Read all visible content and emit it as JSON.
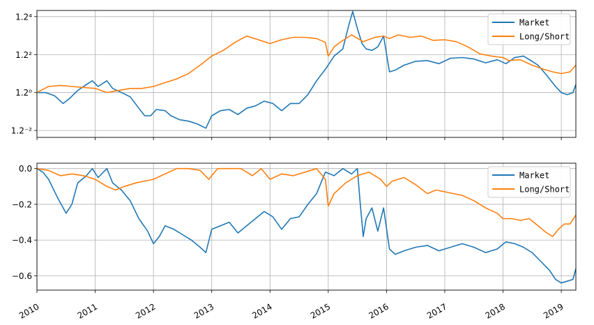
{
  "chart_data": [
    {
      "type": "line",
      "scale": "log",
      "log_base": 1.2,
      "ylim": [
        0.65,
        2.2
      ],
      "y_tick_labels": [
        {
          "value": 2.0736,
          "label": "1.2⁴"
        },
        {
          "value": 1.44,
          "label": "1.2²"
        },
        {
          "value": 1.0,
          "label": "1.2⁰"
        },
        {
          "value": 0.6944,
          "label": "1.2⁻²"
        }
      ],
      "x_tick_labels": [
        "2010",
        "2011",
        "2012",
        "2013",
        "2014",
        "2015",
        "2016",
        "2017",
        "2018",
        "2019"
      ],
      "x_range": [
        2010.0,
        2019.25
      ],
      "grid": true,
      "legend_position": "top-right",
      "series": [
        {
          "name": "Market",
          "color": "#1f77b4",
          "x": [
            2010.0,
            2010.15,
            2010.3,
            2010.45,
            2010.55,
            2010.7,
            2010.85,
            2010.95,
            2011.05,
            2011.2,
            2011.3,
            2011.45,
            2011.6,
            2011.75,
            2011.85,
            2011.95,
            2012.05,
            2012.2,
            2012.3,
            2012.45,
            2012.6,
            2012.75,
            2012.9,
            2013.0,
            2013.15,
            2013.3,
            2013.45,
            2013.6,
            2013.75,
            2013.9,
            2014.05,
            2014.2,
            2014.35,
            2014.5,
            2014.65,
            2014.8,
            2014.95,
            2015.1,
            2015.25,
            2015.35,
            2015.42,
            2015.5,
            2015.58,
            2015.65,
            2015.75,
            2015.85,
            2015.95,
            2016.05,
            2016.15,
            2016.3,
            2016.5,
            2016.7,
            2016.9,
            2017.1,
            2017.3,
            2017.5,
            2017.7,
            2017.9,
            2018.05,
            2018.2,
            2018.35,
            2018.5,
            2018.6,
            2018.75,
            2018.9,
            2019.0,
            2019.1,
            2019.2,
            2019.25
          ],
          "values": [
            1.0,
            1.0,
            0.97,
            0.9,
            0.94,
            1.02,
            1.08,
            1.12,
            1.06,
            1.12,
            1.04,
            1.0,
            0.96,
            0.86,
            0.8,
            0.8,
            0.85,
            0.84,
            0.8,
            0.77,
            0.76,
            0.74,
            0.71,
            0.8,
            0.84,
            0.85,
            0.81,
            0.86,
            0.88,
            0.92,
            0.9,
            0.84,
            0.9,
            0.9,
            0.98,
            1.12,
            1.25,
            1.42,
            1.52,
            1.9,
            2.18,
            1.85,
            1.6,
            1.52,
            1.5,
            1.55,
            1.72,
            1.22,
            1.24,
            1.3,
            1.35,
            1.36,
            1.32,
            1.39,
            1.4,
            1.38,
            1.33,
            1.37,
            1.32,
            1.4,
            1.42,
            1.35,
            1.3,
            1.18,
            1.06,
            1.0,
            0.98,
            1.0,
            1.08
          ]
        },
        {
          "name": "Long/Short",
          "color": "#ff7f0e",
          "x": [
            2010.0,
            2010.2,
            2010.4,
            2010.6,
            2010.8,
            2011.0,
            2011.2,
            2011.4,
            2011.6,
            2011.8,
            2012.0,
            2012.2,
            2012.4,
            2012.6,
            2012.8,
            2013.0,
            2013.2,
            2013.4,
            2013.6,
            2013.8,
            2014.0,
            2014.2,
            2014.4,
            2014.6,
            2014.8,
            2014.95,
            2015.0,
            2015.1,
            2015.2,
            2015.4,
            2015.6,
            2015.8,
            2015.95,
            2016.05,
            2016.2,
            2016.4,
            2016.6,
            2016.8,
            2017.0,
            2017.2,
            2017.4,
            2017.6,
            2017.8,
            2018.0,
            2018.1,
            2018.3,
            2018.5,
            2018.7,
            2018.85,
            2019.0,
            2019.15,
            2019.25
          ],
          "values": [
            1.0,
            1.06,
            1.07,
            1.06,
            1.05,
            1.04,
            1.0,
            1.02,
            1.04,
            1.04,
            1.06,
            1.1,
            1.14,
            1.2,
            1.3,
            1.42,
            1.5,
            1.62,
            1.72,
            1.66,
            1.6,
            1.66,
            1.7,
            1.7,
            1.68,
            1.62,
            1.42,
            1.55,
            1.62,
            1.74,
            1.63,
            1.7,
            1.72,
            1.68,
            1.74,
            1.7,
            1.72,
            1.65,
            1.66,
            1.63,
            1.55,
            1.45,
            1.42,
            1.4,
            1.36,
            1.37,
            1.3,
            1.25,
            1.22,
            1.2,
            1.22,
            1.3
          ]
        }
      ]
    },
    {
      "type": "line",
      "ylim": [
        -0.68,
        0.03
      ],
      "y_ticks": [
        0.0,
        -0.2,
        -0.4,
        -0.6
      ],
      "y_tick_labels": [
        "0.0",
        "−0.2",
        "−0.4",
        "−0.6"
      ],
      "x_tick_labels": [
        "2010",
        "2011",
        "2012",
        "2013",
        "2014",
        "2015",
        "2016",
        "2017",
        "2018",
        "2019"
      ],
      "x_range": [
        2010.0,
        2019.25
      ],
      "grid": true,
      "legend_position": "top-right",
      "series": [
        {
          "name": "Market",
          "color": "#1f77b4",
          "x": [
            2010.0,
            2010.1,
            2010.2,
            2010.35,
            2010.5,
            2010.6,
            2010.7,
            2010.85,
            2010.95,
            2011.05,
            2011.2,
            2011.3,
            2011.45,
            2011.6,
            2011.75,
            2011.9,
            2012.0,
            2012.1,
            2012.2,
            2012.35,
            2012.5,
            2012.65,
            2012.8,
            2012.9,
            2013.0,
            2013.15,
            2013.3,
            2013.45,
            2013.6,
            2013.75,
            2013.9,
            2014.05,
            2014.2,
            2014.35,
            2014.5,
            2014.65,
            2014.8,
            2014.95,
            2015.1,
            2015.25,
            2015.4,
            2015.5,
            2015.55,
            2015.6,
            2015.65,
            2015.75,
            2015.85,
            2015.95,
            2016.05,
            2016.15,
            2016.3,
            2016.5,
            2016.7,
            2016.9,
            2017.1,
            2017.3,
            2017.5,
            2017.7,
            2017.9,
            2018.05,
            2018.2,
            2018.35,
            2018.5,
            2018.65,
            2018.8,
            2018.9,
            2019.0,
            2019.1,
            2019.2,
            2019.25
          ],
          "values": [
            0.0,
            -0.02,
            -0.06,
            -0.16,
            -0.25,
            -0.2,
            -0.08,
            -0.04,
            0.0,
            -0.05,
            0.0,
            -0.08,
            -0.12,
            -0.18,
            -0.28,
            -0.35,
            -0.42,
            -0.38,
            -0.32,
            -0.34,
            -0.37,
            -0.4,
            -0.44,
            -0.47,
            -0.34,
            -0.32,
            -0.3,
            -0.36,
            -0.32,
            -0.28,
            -0.24,
            -0.27,
            -0.34,
            -0.28,
            -0.27,
            -0.2,
            -0.14,
            -0.02,
            -0.04,
            0.0,
            -0.03,
            0.0,
            -0.2,
            -0.38,
            -0.28,
            -0.22,
            -0.35,
            -0.22,
            -0.45,
            -0.48,
            -0.46,
            -0.44,
            -0.43,
            -0.46,
            -0.44,
            -0.42,
            -0.44,
            -0.47,
            -0.45,
            -0.41,
            -0.42,
            -0.44,
            -0.47,
            -0.52,
            -0.57,
            -0.62,
            -0.64,
            -0.63,
            -0.62,
            -0.56
          ]
        },
        {
          "name": "Long/Short",
          "color": "#ff7f0e",
          "x": [
            2010.0,
            2010.2,
            2010.4,
            2010.6,
            2010.8,
            2011.0,
            2011.2,
            2011.35,
            2011.5,
            2011.7,
            2011.85,
            2012.0,
            2012.2,
            2012.4,
            2012.6,
            2012.8,
            2012.95,
            2013.1,
            2013.3,
            2013.5,
            2013.7,
            2013.85,
            2014.0,
            2014.2,
            2014.4,
            2014.6,
            2014.8,
            2014.95,
            2015.0,
            2015.1,
            2015.3,
            2015.5,
            2015.7,
            2015.9,
            2016.0,
            2016.1,
            2016.3,
            2016.5,
            2016.7,
            2016.85,
            2017.0,
            2017.15,
            2017.3,
            2017.5,
            2017.7,
            2017.9,
            2018.0,
            2018.15,
            2018.3,
            2018.45,
            2018.6,
            2018.75,
            2018.85,
            2018.95,
            2019.05,
            2019.15,
            2019.25
          ],
          "values": [
            0.0,
            -0.01,
            -0.04,
            -0.03,
            -0.04,
            -0.06,
            -0.1,
            -0.12,
            -0.1,
            -0.08,
            -0.07,
            -0.06,
            -0.03,
            0.0,
            0.0,
            -0.01,
            -0.06,
            0.0,
            0.0,
            0.0,
            -0.04,
            0.0,
            -0.06,
            -0.03,
            -0.04,
            -0.02,
            0.0,
            -0.06,
            -0.21,
            -0.14,
            -0.08,
            -0.04,
            -0.02,
            -0.06,
            -0.1,
            -0.07,
            -0.05,
            -0.09,
            -0.14,
            -0.12,
            -0.13,
            -0.14,
            -0.15,
            -0.18,
            -0.22,
            -0.25,
            -0.28,
            -0.28,
            -0.29,
            -0.28,
            -0.32,
            -0.36,
            -0.38,
            -0.34,
            -0.31,
            -0.31,
            -0.26
          ]
        }
      ]
    }
  ]
}
